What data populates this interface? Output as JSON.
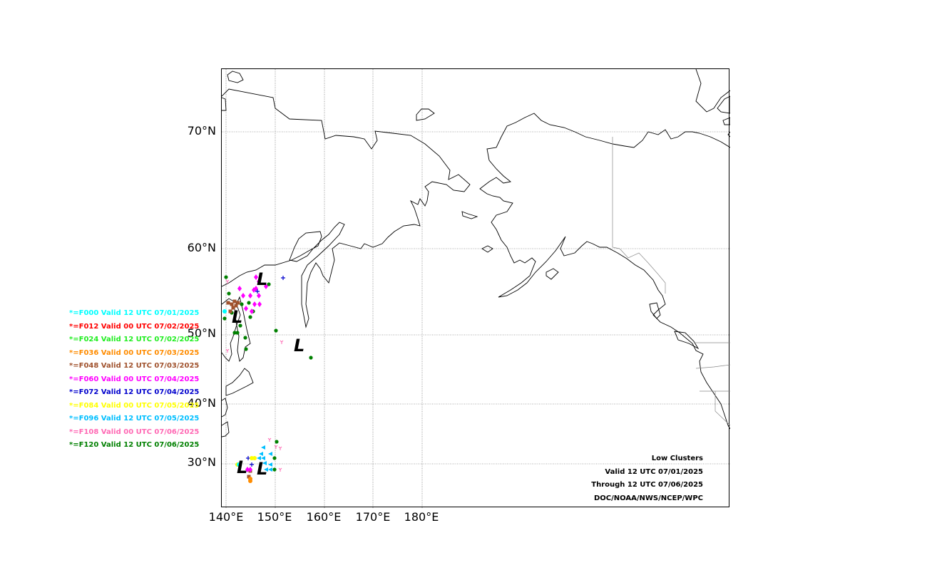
{
  "map": {
    "lat_labels": [
      "70°N",
      "60°N",
      "50°N",
      "40°N",
      "30°N"
    ],
    "lon_labels": [
      "140°E",
      "150°E",
      "160°E",
      "170°E",
      "180°E"
    ]
  },
  "legend": [
    {
      "label": "*=F000 Valid 12 UTC 07/01/2025",
      "color": "#00ffff"
    },
    {
      "label": "*=F012 Valid 00 UTC 07/02/2025",
      "color": "#ff0000"
    },
    {
      "label": "*=F024 Valid 12 UTC 07/02/2025",
      "color": "#22ee22"
    },
    {
      "label": "*=F036 Valid 00 UTC 07/03/2025",
      "color": "#ff8c00"
    },
    {
      "label": "*=F048 Valid 12 UTC 07/03/2025",
      "color": "#a0522d"
    },
    {
      "label": "*=F060 Valid 00 UTC 07/04/2025",
      "color": "#ff00ff"
    },
    {
      "label": "*=F072 Valid 12 UTC 07/04/2025",
      "color": "#0000cd"
    },
    {
      "label": "*=F084 Valid 00 UTC 07/05/2025",
      "color": "#ffff00"
    },
    {
      "label": "*=F096 Valid 12 UTC 07/05/2025",
      "color": "#00bfff"
    },
    {
      "label": "*=F108 Valid 00 UTC 07/06/2025",
      "color": "#ff69b4"
    },
    {
      "label": "*=F120 Valid 12 UTC 07/06/2025",
      "color": "#008000"
    }
  ],
  "info": {
    "title": "Low Clusters",
    "valid": "Valid 12 UTC 07/01/2025",
    "through": "Through 12 UTC 07/06/2025",
    "source": "DOC/NOAA/NWS/NCEP/WPC"
  },
  "low_marker": "L"
}
